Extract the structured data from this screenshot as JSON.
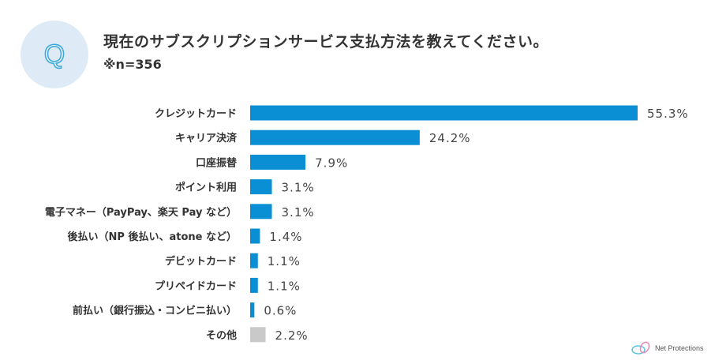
{
  "header": {
    "icon_letter": "Q",
    "title": "現在のサブスクリプションサービス支払方法を教えてください。",
    "note": "※n=356"
  },
  "brand": {
    "name": "Net Protections"
  },
  "colors": {
    "bar": "#0b8fd4",
    "other": "#c9c9c9",
    "circle": "#deebf7"
  },
  "chart_data": {
    "type": "bar",
    "orientation": "horizontal",
    "title": "現在のサブスクリプションサービス支払方法を教えてください。",
    "categories": [
      "クレジットカード",
      "キャリア決済",
      "口座振替",
      "ポイント利用",
      "電子マネー（PayPay、楽天 Pay など）",
      "後払い（NP 後払い、atone など）",
      "デビットカード",
      "プリペイドカード",
      "前払い（銀行振込・コンビニ払い）",
      "その他"
    ],
    "values": [
      55.3,
      24.2,
      7.9,
      3.1,
      3.1,
      1.4,
      1.1,
      1.1,
      0.6,
      2.2
    ],
    "value_labels": [
      "55.3%",
      "24.2%",
      "7.9%",
      "3.1%",
      "3.1%",
      "1.4%",
      "1.1%",
      "1.1%",
      "0.6%",
      "2.2%"
    ],
    "unit": "%",
    "grid": false,
    "xlim": [
      0,
      55.3
    ]
  }
}
